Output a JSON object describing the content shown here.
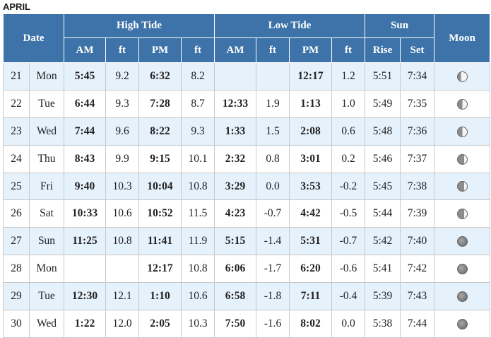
{
  "month": "APRIL",
  "headers": {
    "date": "Date",
    "high_tide": "High Tide",
    "low_tide": "Low Tide",
    "sun": "Sun",
    "moon": "Moon",
    "am": "AM",
    "ft": "ft",
    "pm": "PM",
    "rise": "Rise",
    "set": "Set"
  },
  "rows": [
    {
      "day": "21",
      "weekday": "Mon",
      "high_am": "5:45",
      "high_am_ft": "9.2",
      "high_pm": "6:32",
      "high_pm_ft": "8.2",
      "low_am": "",
      "low_am_ft": "",
      "low_pm": "12:17",
      "low_pm_ft": "1.2",
      "rise": "5:51",
      "set": "7:34",
      "moon": "waning-gibbous"
    },
    {
      "day": "22",
      "weekday": "Tue",
      "high_am": "6:44",
      "high_am_ft": "9.3",
      "high_pm": "7:28",
      "high_pm_ft": "8.7",
      "low_am": "12:33",
      "low_am_ft": "1.9",
      "low_pm": "1:13",
      "low_pm_ft": "1.0",
      "rise": "5:49",
      "set": "7:35",
      "moon": "last-quarter"
    },
    {
      "day": "23",
      "weekday": "Wed",
      "high_am": "7:44",
      "high_am_ft": "9.6",
      "high_pm": "8:22",
      "high_pm_ft": "9.3",
      "low_am": "1:33",
      "low_am_ft": "1.5",
      "low_pm": "2:08",
      "low_pm_ft": "0.6",
      "rise": "5:48",
      "set": "7:36",
      "moon": "last-quarter"
    },
    {
      "day": "24",
      "weekday": "Thu",
      "high_am": "8:43",
      "high_am_ft": "9.9",
      "high_pm": "9:15",
      "high_pm_ft": "10.1",
      "low_am": "2:32",
      "low_am_ft": "0.8",
      "low_pm": "3:01",
      "low_pm_ft": "0.2",
      "rise": "5:46",
      "set": "7:37",
      "moon": "waning-crescent"
    },
    {
      "day": "25",
      "weekday": "Fri",
      "high_am": "9:40",
      "high_am_ft": "10.3",
      "high_pm": "10:04",
      "high_pm_ft": "10.8",
      "low_am": "3:29",
      "low_am_ft": "0.0",
      "low_pm": "3:53",
      "low_pm_ft": "-0.2",
      "rise": "5:45",
      "set": "7:38",
      "moon": "waning-crescent"
    },
    {
      "day": "26",
      "weekday": "Sat",
      "high_am": "10:33",
      "high_am_ft": "10.6",
      "high_pm": "10:52",
      "high_pm_ft": "11.5",
      "low_am": "4:23",
      "low_am_ft": "-0.7",
      "low_pm": "4:42",
      "low_pm_ft": "-0.5",
      "rise": "5:44",
      "set": "7:39",
      "moon": "waning-crescent"
    },
    {
      "day": "27",
      "weekday": "Sun",
      "high_am": "11:25",
      "high_am_ft": "10.8",
      "high_pm": "11:41",
      "high_pm_ft": "11.9",
      "low_am": "5:15",
      "low_am_ft": "-1.4",
      "low_pm": "5:31",
      "low_pm_ft": "-0.7",
      "rise": "5:42",
      "set": "7:40",
      "moon": "new-moon"
    },
    {
      "day": "28",
      "weekday": "Mon",
      "high_am": "",
      "high_am_ft": "",
      "high_pm": "12:17",
      "high_pm_ft": "10.8",
      "low_am": "6:06",
      "low_am_ft": "-1.7",
      "low_pm": "6:20",
      "low_pm_ft": "-0.6",
      "rise": "5:41",
      "set": "7:42",
      "moon": "new-moon"
    },
    {
      "day": "29",
      "weekday": "Tue",
      "high_am": "12:30",
      "high_am_ft": "12.1",
      "high_pm": "1:10",
      "high_pm_ft": "10.6",
      "low_am": "6:58",
      "low_am_ft": "-1.8",
      "low_pm": "7:11",
      "low_pm_ft": "-0.4",
      "rise": "5:39",
      "set": "7:43",
      "moon": "new-moon"
    },
    {
      "day": "30",
      "weekday": "Wed",
      "high_am": "1:22",
      "high_am_ft": "12.0",
      "high_pm": "2:05",
      "high_pm_ft": "10.3",
      "low_am": "7:50",
      "low_am_ft": "-1.6",
      "low_pm": "8:02",
      "low_pm_ft": "0.0",
      "rise": "5:38",
      "set": "7:44",
      "moon": "new-moon"
    }
  ]
}
